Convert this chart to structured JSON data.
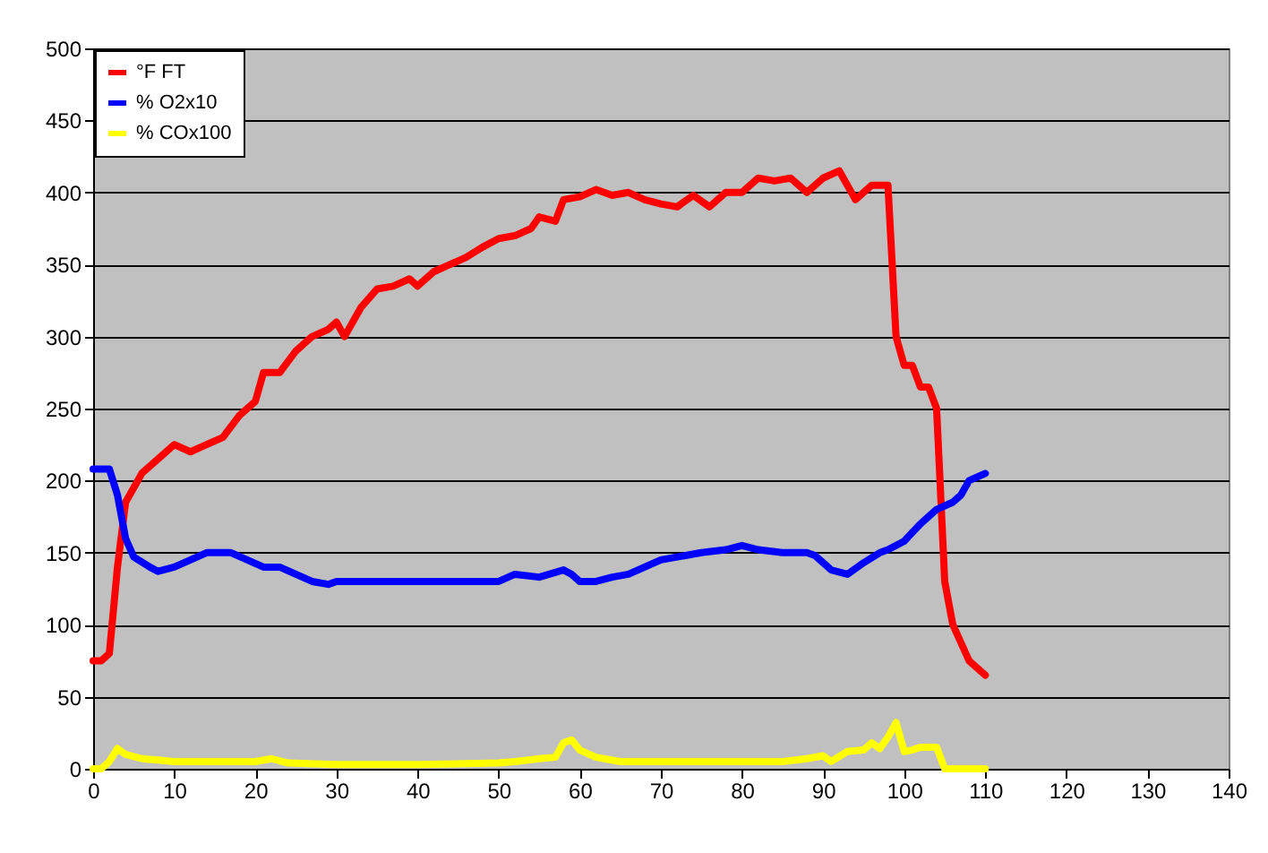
{
  "chart_data": {
    "type": "line",
    "xlim": [
      0,
      140
    ],
    "xticks": [
      0,
      10,
      20,
      30,
      40,
      50,
      60,
      70,
      80,
      90,
      100,
      110,
      120,
      130,
      140
    ],
    "ylim": [
      0,
      500
    ],
    "yticks": [
      0,
      50,
      100,
      150,
      200,
      250,
      300,
      350,
      400,
      450,
      500
    ],
    "grid": "y",
    "legend": "top left",
    "series": [
      {
        "name": "°F FT",
        "color": "#ff0000",
        "x": [
          0,
          1,
          2,
          3,
          4,
          5,
          6,
          8,
          10,
          12,
          14,
          16,
          18,
          20,
          21,
          23,
          25,
          27,
          29,
          30,
          31,
          33,
          35,
          37,
          39,
          40,
          42,
          44,
          46,
          48,
          50,
          52,
          54,
          55,
          57,
          58,
          60,
          62,
          64,
          66,
          68,
          70,
          72,
          74,
          76,
          78,
          80,
          82,
          84,
          86,
          88,
          90,
          92,
          94,
          96,
          98,
          99,
          100,
          101,
          102,
          103,
          104,
          105,
          106,
          108,
          110
        ],
        "values": [
          75,
          75,
          80,
          140,
          185,
          195,
          205,
          215,
          225,
          220,
          225,
          230,
          245,
          255,
          275,
          275,
          290,
          300,
          305,
          310,
          300,
          320,
          333,
          335,
          340,
          335,
          345,
          350,
          355,
          362,
          368,
          370,
          375,
          383,
          380,
          395,
          397,
          402,
          398,
          400,
          395,
          392,
          390,
          398,
          390,
          400,
          400,
          410,
          408,
          410,
          400,
          410,
          415,
          395,
          405,
          405,
          300,
          280,
          280,
          265,
          265,
          250,
          130,
          100,
          75,
          65
        ]
      },
      {
        "name": "% O2x10",
        "color": "#0000ff",
        "x": [
          0,
          2,
          3,
          4,
          5,
          7,
          8,
          10,
          12,
          14,
          17,
          19,
          21,
          23,
          25,
          27,
          29,
          30,
          35,
          40,
          50,
          52,
          55,
          58,
          59,
          60,
          62,
          64,
          66,
          68,
          70,
          72,
          75,
          78,
          80,
          82,
          85,
          88,
          89,
          91,
          93,
          95,
          97,
          98,
          100,
          102,
          104,
          106,
          107,
          108,
          110
        ],
        "values": [
          208,
          208,
          190,
          160,
          147,
          140,
          137,
          140,
          145,
          150,
          150,
          145,
          140,
          140,
          135,
          130,
          128,
          130,
          130,
          130,
          130,
          135,
          133,
          138,
          135,
          130,
          130,
          133,
          135,
          140,
          145,
          147,
          150,
          152,
          155,
          152,
          150,
          150,
          148,
          138,
          135,
          143,
          150,
          152,
          158,
          170,
          180,
          185,
          190,
          200,
          205
        ]
      },
      {
        "name": "% COx100",
        "color": "#ffff00",
        "x": [
          0,
          1,
          2,
          3,
          4,
          6,
          8,
          10,
          13,
          20,
          22,
          24,
          30,
          40,
          50,
          52,
          55,
          57,
          58,
          59,
          60,
          62,
          65,
          70,
          80,
          85,
          88,
          90,
          91,
          93,
          95,
          96,
          97,
          98,
          99,
          100,
          101,
          102,
          104,
          105,
          110
        ],
        "values": [
          0,
          0,
          5,
          14,
          10,
          7,
          6,
          5,
          5,
          5,
          7,
          4,
          3,
          3,
          4,
          5,
          7,
          8,
          18,
          20,
          13,
          8,
          5,
          5,
          5,
          5,
          7,
          9,
          5,
          12,
          13,
          18,
          14,
          22,
          32,
          12,
          13,
          15,
          15,
          0,
          0
        ]
      }
    ]
  }
}
